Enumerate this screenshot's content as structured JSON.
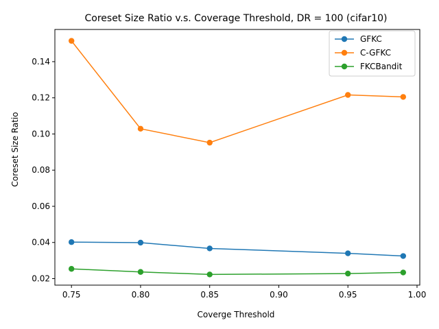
{
  "chart_data": {
    "type": "line",
    "title": "Coreset Size Ratio v.s. Coverage Threshold, DR = 100 (cifar10)",
    "xlabel": "Coverge Threshold",
    "ylabel": "Coreset Size Ratio",
    "x": [
      0.75,
      0.8,
      0.85,
      0.95,
      0.99
    ],
    "xlim": [
      0.738,
      1.002
    ],
    "ylim": [
      0.0164,
      0.1578
    ],
    "xticks": [
      "0.75",
      "0.80",
      "0.85",
      "0.90",
      "0.95",
      "1.00"
    ],
    "xtick_values": [
      0.75,
      0.8,
      0.85,
      0.9,
      0.95,
      1.0
    ],
    "yticks": [
      "0.02",
      "0.04",
      "0.06",
      "0.08",
      "0.10",
      "0.12",
      "0.14"
    ],
    "ytick_values": [
      0.02,
      0.04,
      0.06,
      0.08,
      0.1,
      0.12,
      0.14
    ],
    "grid": false,
    "legend_position": "top-right",
    "series": [
      {
        "name": "GFKC",
        "color": "#1f77b4",
        "values": [
          0.0402,
          0.0399,
          0.0367,
          0.034,
          0.0325
        ]
      },
      {
        "name": "C-GFKC",
        "color": "#ff7f0e",
        "values": [
          0.1515,
          0.1029,
          0.0952,
          0.1216,
          0.1205
        ]
      },
      {
        "name": "FKCBandit",
        "color": "#2ca02c",
        "values": [
          0.0254,
          0.0237,
          0.0223,
          0.0228,
          0.0234
        ]
      }
    ]
  }
}
